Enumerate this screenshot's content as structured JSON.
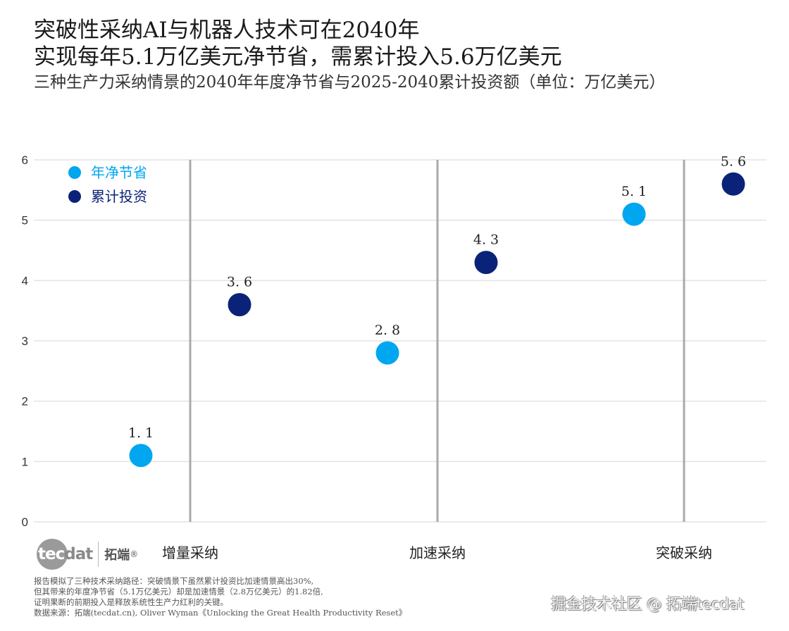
{
  "header": {
    "title_line1": "突破性采纳AI与机器人技术可在2040年",
    "title_line2": "实现每年5.1万亿美元净节省，需累计投入5.6万亿美元",
    "subtitle": "三种生产力采纳情景的2040年年度净节省与2025-2040累计投资额（单位：万亿美元）"
  },
  "colors": {
    "savings": "#00a6ef",
    "investment": "#0b2279",
    "separator": "#aaaaaa",
    "grid": "#e3e3e3"
  },
  "chart_data": {
    "type": "scatter",
    "title": "突破性采纳AI与机器人技术可在2040年实现每年5.1万亿美元净节省，需累计投入5.6万亿美元",
    "subtitle": "三种生产力采纳情景的2040年年度净节省与2025-2040累计投资额（单位：万亿美元）",
    "categories": [
      "增量采纳",
      "加速采纳",
      "突破采纳"
    ],
    "series": [
      {
        "name": "年净节省",
        "color": "#00a6ef",
        "values": [
          1.1,
          2.8,
          5.1
        ],
        "labels": [
          "1. 1",
          "2. 8",
          "5. 1"
        ]
      },
      {
        "name": "累计投资",
        "color": "#0b2279",
        "values": [
          3.6,
          4.3,
          5.6
        ],
        "labels": [
          "3. 6",
          "4. 3",
          "5. 6"
        ]
      }
    ],
    "yticks": [
      "0",
      "1",
      "2",
      "3",
      "4",
      "5",
      "6"
    ],
    "ylim": [
      0,
      6
    ],
    "xlabel": "",
    "ylabel": "",
    "grid": true,
    "legend_position": "top-left"
  },
  "logo": {
    "tec": "tec",
    "dat": "dat",
    "cn": "拓端",
    "reg": "®"
  },
  "notes": [
    "报告模拟了三种技术采纳路径：突破情景下虽然累计投资比加速情景高出30%,",
    "但其带来的年度净节省（5.1万亿美元）却是加速情景（2.8万亿美元）的1.82倍,",
    "证明果断的前期投入是释放系统性生产力红利的关键。",
    "数据来源：拓端(tecdat.cn), Oliver Wyman《Unlocking the Great Health Productivity Reset》"
  ],
  "watermark": "掘金技术社区 @ 拓端tecdat"
}
